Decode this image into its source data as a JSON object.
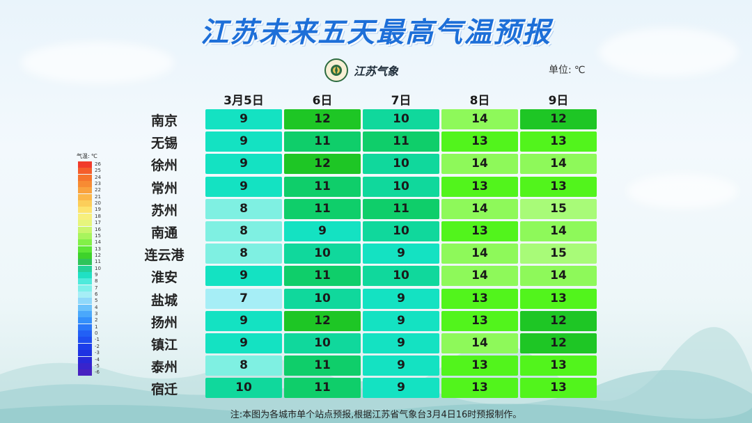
{
  "title": "江苏未来五天最高气温预报",
  "logo_text": "江苏气象",
  "unit_label": "单位:",
  "unit_value": "℃",
  "days": [
    "3月5日",
    "6日",
    "7日",
    "8日",
    "9日"
  ],
  "rows": [
    {
      "city": "南京",
      "temps": [
        9,
        12,
        10,
        14,
        12
      ]
    },
    {
      "city": "无锡",
      "temps": [
        9,
        11,
        11,
        13,
        13
      ]
    },
    {
      "city": "徐州",
      "temps": [
        9,
        12,
        10,
        14,
        14
      ]
    },
    {
      "city": "常州",
      "temps": [
        9,
        11,
        10,
        13,
        13
      ]
    },
    {
      "city": "苏州",
      "temps": [
        8,
        11,
        11,
        14,
        15
      ]
    },
    {
      "city": "南通",
      "temps": [
        8,
        9,
        10,
        13,
        14
      ]
    },
    {
      "city": "连云港",
      "temps": [
        8,
        10,
        9,
        14,
        15
      ]
    },
    {
      "city": "淮安",
      "temps": [
        9,
        11,
        10,
        14,
        14
      ]
    },
    {
      "city": "盐城",
      "temps": [
        7,
        10,
        9,
        13,
        13
      ]
    },
    {
      "city": "扬州",
      "temps": [
        9,
        12,
        9,
        13,
        12
      ]
    },
    {
      "city": "镇江",
      "temps": [
        9,
        10,
        9,
        14,
        12
      ]
    },
    {
      "city": "泰州",
      "temps": [
        8,
        11,
        9,
        13,
        13
      ]
    },
    {
      "city": "宿迁",
      "temps": [
        10,
        11,
        9,
        13,
        13
      ]
    }
  ],
  "legend": {
    "title": "气温:",
    "unit": "℃",
    "levels": [
      "26",
      "25",
      "24",
      "23",
      "22",
      "21",
      "20",
      "19",
      "18",
      "17",
      "16",
      "15",
      "14",
      "13",
      "12",
      "11",
      "10",
      "9",
      "8",
      "7",
      "6",
      "5",
      "4",
      "3",
      "2",
      "1",
      "0",
      "-1",
      "-2",
      "-3",
      "-4",
      "-5",
      "-6"
    ],
    "colors": [
      "#f13b2b",
      "#f55d2a",
      "#f6742c",
      "#f78b33",
      "#f9a23e",
      "#fbb74a",
      "#fcce5a",
      "#fde36e",
      "#f7ef7d",
      "#e6f57c",
      "#c9f56d",
      "#a8f45d",
      "#82f048",
      "#5ce637",
      "#3ed22b",
      "#2ec45a",
      "#25d29a",
      "#20e0c4",
      "#4eeadb",
      "#7ff0ea",
      "#a6eef6",
      "#8fd8fa",
      "#6cc2fb",
      "#4aa8fb",
      "#3490fb",
      "#2a78f9",
      "#2260f5",
      "#1e4ef0",
      "#1c3eea",
      "#1e32e2",
      "#2828d8",
      "#3824cc",
      "#4822c0"
    ]
  },
  "temp_colors": {
    "7": "#a6eef6",
    "8": "#7ff0e2",
    "9": "#14e2c2",
    "10": "#10d89c",
    "11": "#0fce6a",
    "12": "#1ec625",
    "13": "#52f41c",
    "14": "#8ef95a",
    "15": "#a8fb78"
  },
  "note": "注:本图为各城市单个站点预报,根据江苏省气象台3月4日16时预报制作。"
}
